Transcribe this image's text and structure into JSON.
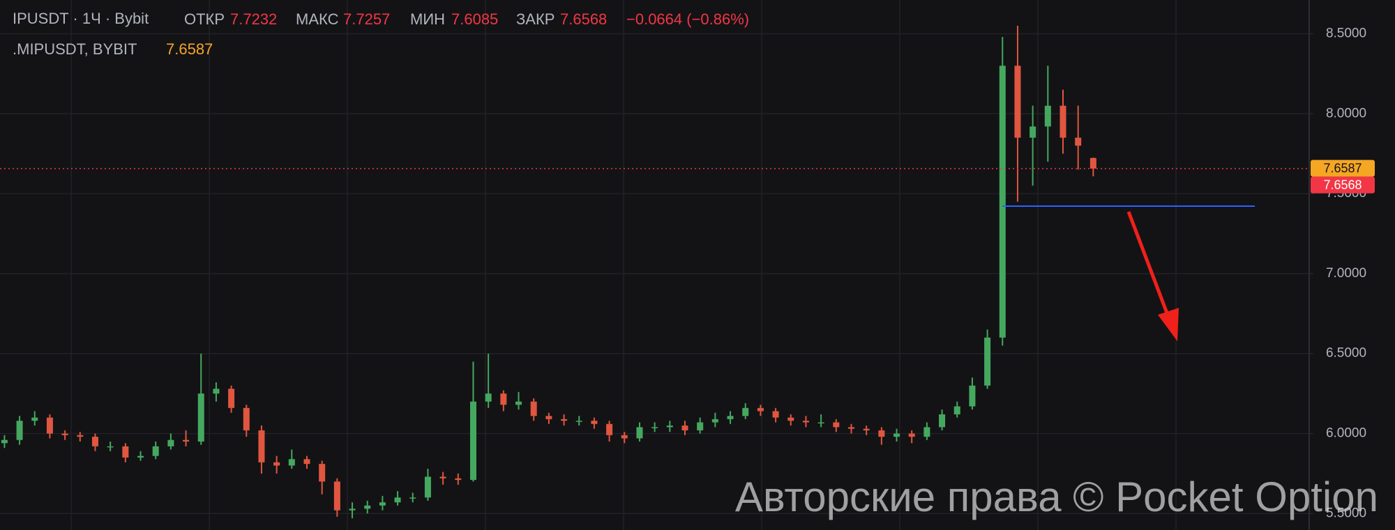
{
  "chart_data": {
    "type": "candlestick",
    "header": {
      "symbol": "IPUSDT · 1Ч · Bybit",
      "open_label": "ОТКР",
      "open_value": "7.7232",
      "high_label": "МАКС",
      "high_value": "7.7257",
      "low_label": "МИН",
      "low_value": "7.6085",
      "close_label": "ЗАКР",
      "close_value": "7.6568",
      "change": "−0.0664 (−0.86%)"
    },
    "indicator": {
      "name": ".MIPUSDT, BYBIT",
      "value": "7.6587"
    },
    "watermark": "Авторские права © Pocket Option",
    "up_color": "#45a85f",
    "down_color": "#e0563f",
    "open": [
      5.94,
      5.96,
      6.08,
      6.1,
      6.0,
      5.99,
      5.98,
      5.92,
      5.92,
      5.85,
      5.86,
      5.92,
      5.96,
      5.95,
      6.25,
      6.28,
      6.16,
      6.02,
      5.82,
      5.8,
      5.84,
      5.81,
      5.7,
      5.52,
      5.53,
      5.55,
      5.57,
      5.6,
      5.6,
      5.73,
      5.72,
      5.71,
      6.2,
      6.25,
      6.18,
      6.2,
      6.11,
      6.09,
      6.08,
      6.08,
      6.06,
      5.99,
      5.97,
      6.04,
      6.04,
      6.05,
      6.02,
      6.07,
      6.09,
      6.11,
      6.16,
      6.14,
      6.1,
      6.08,
      6.07,
      6.07,
      6.04,
      6.03,
      6.02,
      5.98,
      6.0,
      5.98,
      6.04,
      6.12,
      6.17,
      6.3,
      6.6,
      8.3,
      7.85,
      7.92,
      8.05,
      7.85,
      7.7232
    ],
    "high": [
      5.99,
      6.11,
      6.14,
      6.12,
      6.02,
      6.01,
      6.0,
      5.95,
      5.94,
      5.89,
      5.95,
      6.0,
      6.02,
      6.5,
      6.32,
      6.3,
      6.18,
      6.05,
      5.86,
      5.9,
      5.86,
      5.83,
      5.72,
      5.57,
      5.58,
      5.61,
      5.64,
      5.63,
      5.78,
      5.76,
      5.75,
      6.45,
      6.5,
      6.27,
      6.26,
      6.22,
      6.13,
      6.12,
      6.11,
      6.1,
      6.08,
      6.01,
      6.07,
      6.07,
      6.08,
      6.08,
      6.1,
      6.13,
      6.14,
      6.19,
      6.18,
      6.16,
      6.12,
      6.11,
      6.12,
      6.09,
      6.06,
      6.05,
      6.04,
      6.03,
      6.02,
      6.07,
      6.15,
      6.2,
      6.35,
      6.65,
      8.48,
      8.55,
      8.05,
      8.3,
      8.15,
      8.05,
      7.7257
    ],
    "low": [
      5.91,
      5.93,
      6.05,
      5.97,
      5.96,
      5.95,
      5.89,
      5.89,
      5.82,
      5.83,
      5.84,
      5.9,
      5.92,
      5.93,
      6.2,
      6.13,
      5.98,
      5.75,
      5.75,
      5.78,
      5.78,
      5.62,
      5.48,
      5.47,
      5.5,
      5.52,
      5.55,
      5.57,
      5.58,
      5.68,
      5.68,
      5.7,
      6.16,
      6.14,
      6.15,
      6.08,
      6.06,
      6.05,
      6.05,
      6.03,
      5.95,
      5.94,
      5.95,
      6.01,
      6.01,
      5.99,
      6.0,
      6.04,
      6.06,
      6.09,
      6.11,
      6.07,
      6.05,
      6.04,
      6.04,
      6.01,
      6.0,
      5.99,
      5.93,
      5.95,
      5.94,
      5.96,
      6.02,
      6.1,
      6.15,
      6.28,
      6.55,
      7.45,
      7.55,
      7.7,
      7.75,
      7.65,
      7.6085
    ],
    "close": [
      5.96,
      6.08,
      6.1,
      6.0,
      5.99,
      5.98,
      5.92,
      5.92,
      5.85,
      5.86,
      5.92,
      5.96,
      5.95,
      6.25,
      6.28,
      6.16,
      6.02,
      5.82,
      5.8,
      5.84,
      5.81,
      5.7,
      5.52,
      5.53,
      5.55,
      5.57,
      5.6,
      5.6,
      5.73,
      5.72,
      5.71,
      6.2,
      6.25,
      6.18,
      6.2,
      6.11,
      6.09,
      6.08,
      6.08,
      6.06,
      5.99,
      5.97,
      6.04,
      6.04,
      6.05,
      6.02,
      6.07,
      6.09,
      6.11,
      6.16,
      6.14,
      6.1,
      6.08,
      6.07,
      6.07,
      6.04,
      6.03,
      6.02,
      5.98,
      6.0,
      5.98,
      6.04,
      6.12,
      6.17,
      6.3,
      6.6,
      8.3,
      7.85,
      7.92,
      8.05,
      7.85,
      7.8,
      7.6568
    ],
    "ylim": [
      5.397,
      8.711
    ],
    "yticks": [
      {
        "value": 5.5,
        "label": "5.5000"
      },
      {
        "value": 6.0,
        "label": "6.0000"
      },
      {
        "value": 6.5,
        "label": "6.5000"
      },
      {
        "value": 7.0,
        "label": "7.0000"
      },
      {
        "value": 7.5,
        "label": "7.5000"
      },
      {
        "value": 8.0,
        "label": "8.0000"
      },
      {
        "value": 8.5,
        "label": "8.5000"
      }
    ],
    "grid": true,
    "support_level": 7.422,
    "support_color": "#2962ff",
    "price_line": 7.6568,
    "price_tags": [
      {
        "value": 7.6587,
        "label": "7.6587",
        "color": "#f5a623"
      },
      {
        "value": 7.6568,
        "label": "7.6568",
        "color": "#f23645"
      }
    ]
  }
}
